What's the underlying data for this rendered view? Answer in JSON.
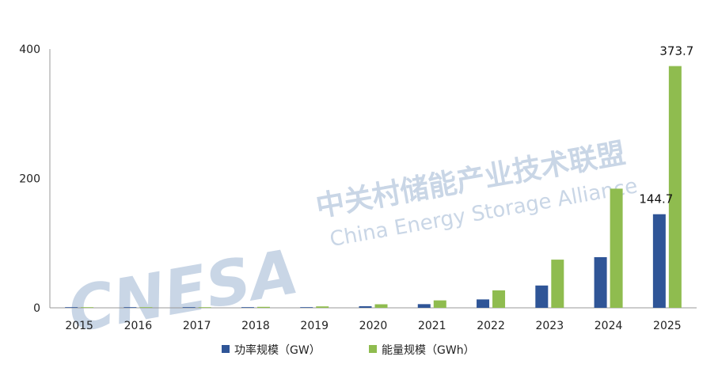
{
  "watermark": {
    "logo": "CNESA",
    "cn": "中关村储能产业技术联盟",
    "en": "China Energy Storage Alliance"
  },
  "chart_data": {
    "type": "bar",
    "categories": [
      "2015",
      "2016",
      "2017",
      "2018",
      "2019",
      "2020",
      "2021",
      "2022",
      "2023",
      "2024",
      "2025"
    ],
    "series": [
      {
        "name": "功率规模（GW）",
        "color": "#2f5597",
        "values": [
          0.1,
          0.3,
          0.4,
          1.0,
          1.0,
          2.5,
          5.7,
          13.0,
          34.5,
          78.3,
          144.7
        ]
      },
      {
        "name": "能量规模（GWh）",
        "color": "#8fbc4f",
        "values": [
          0.2,
          0.5,
          0.7,
          1.5,
          2.2,
          5.5,
          11.5,
          27.0,
          74.5,
          184.2,
          373.7
        ]
      }
    ],
    "data_labels": [
      {
        "series": 0,
        "category": "2025",
        "text": "144.7"
      },
      {
        "series": 1,
        "category": "2025",
        "text": "373.7"
      }
    ],
    "yticks": [
      "0",
      "200",
      "400"
    ],
    "ylim": [
      0,
      400
    ],
    "grid": false,
    "legend_position": "bottom"
  }
}
